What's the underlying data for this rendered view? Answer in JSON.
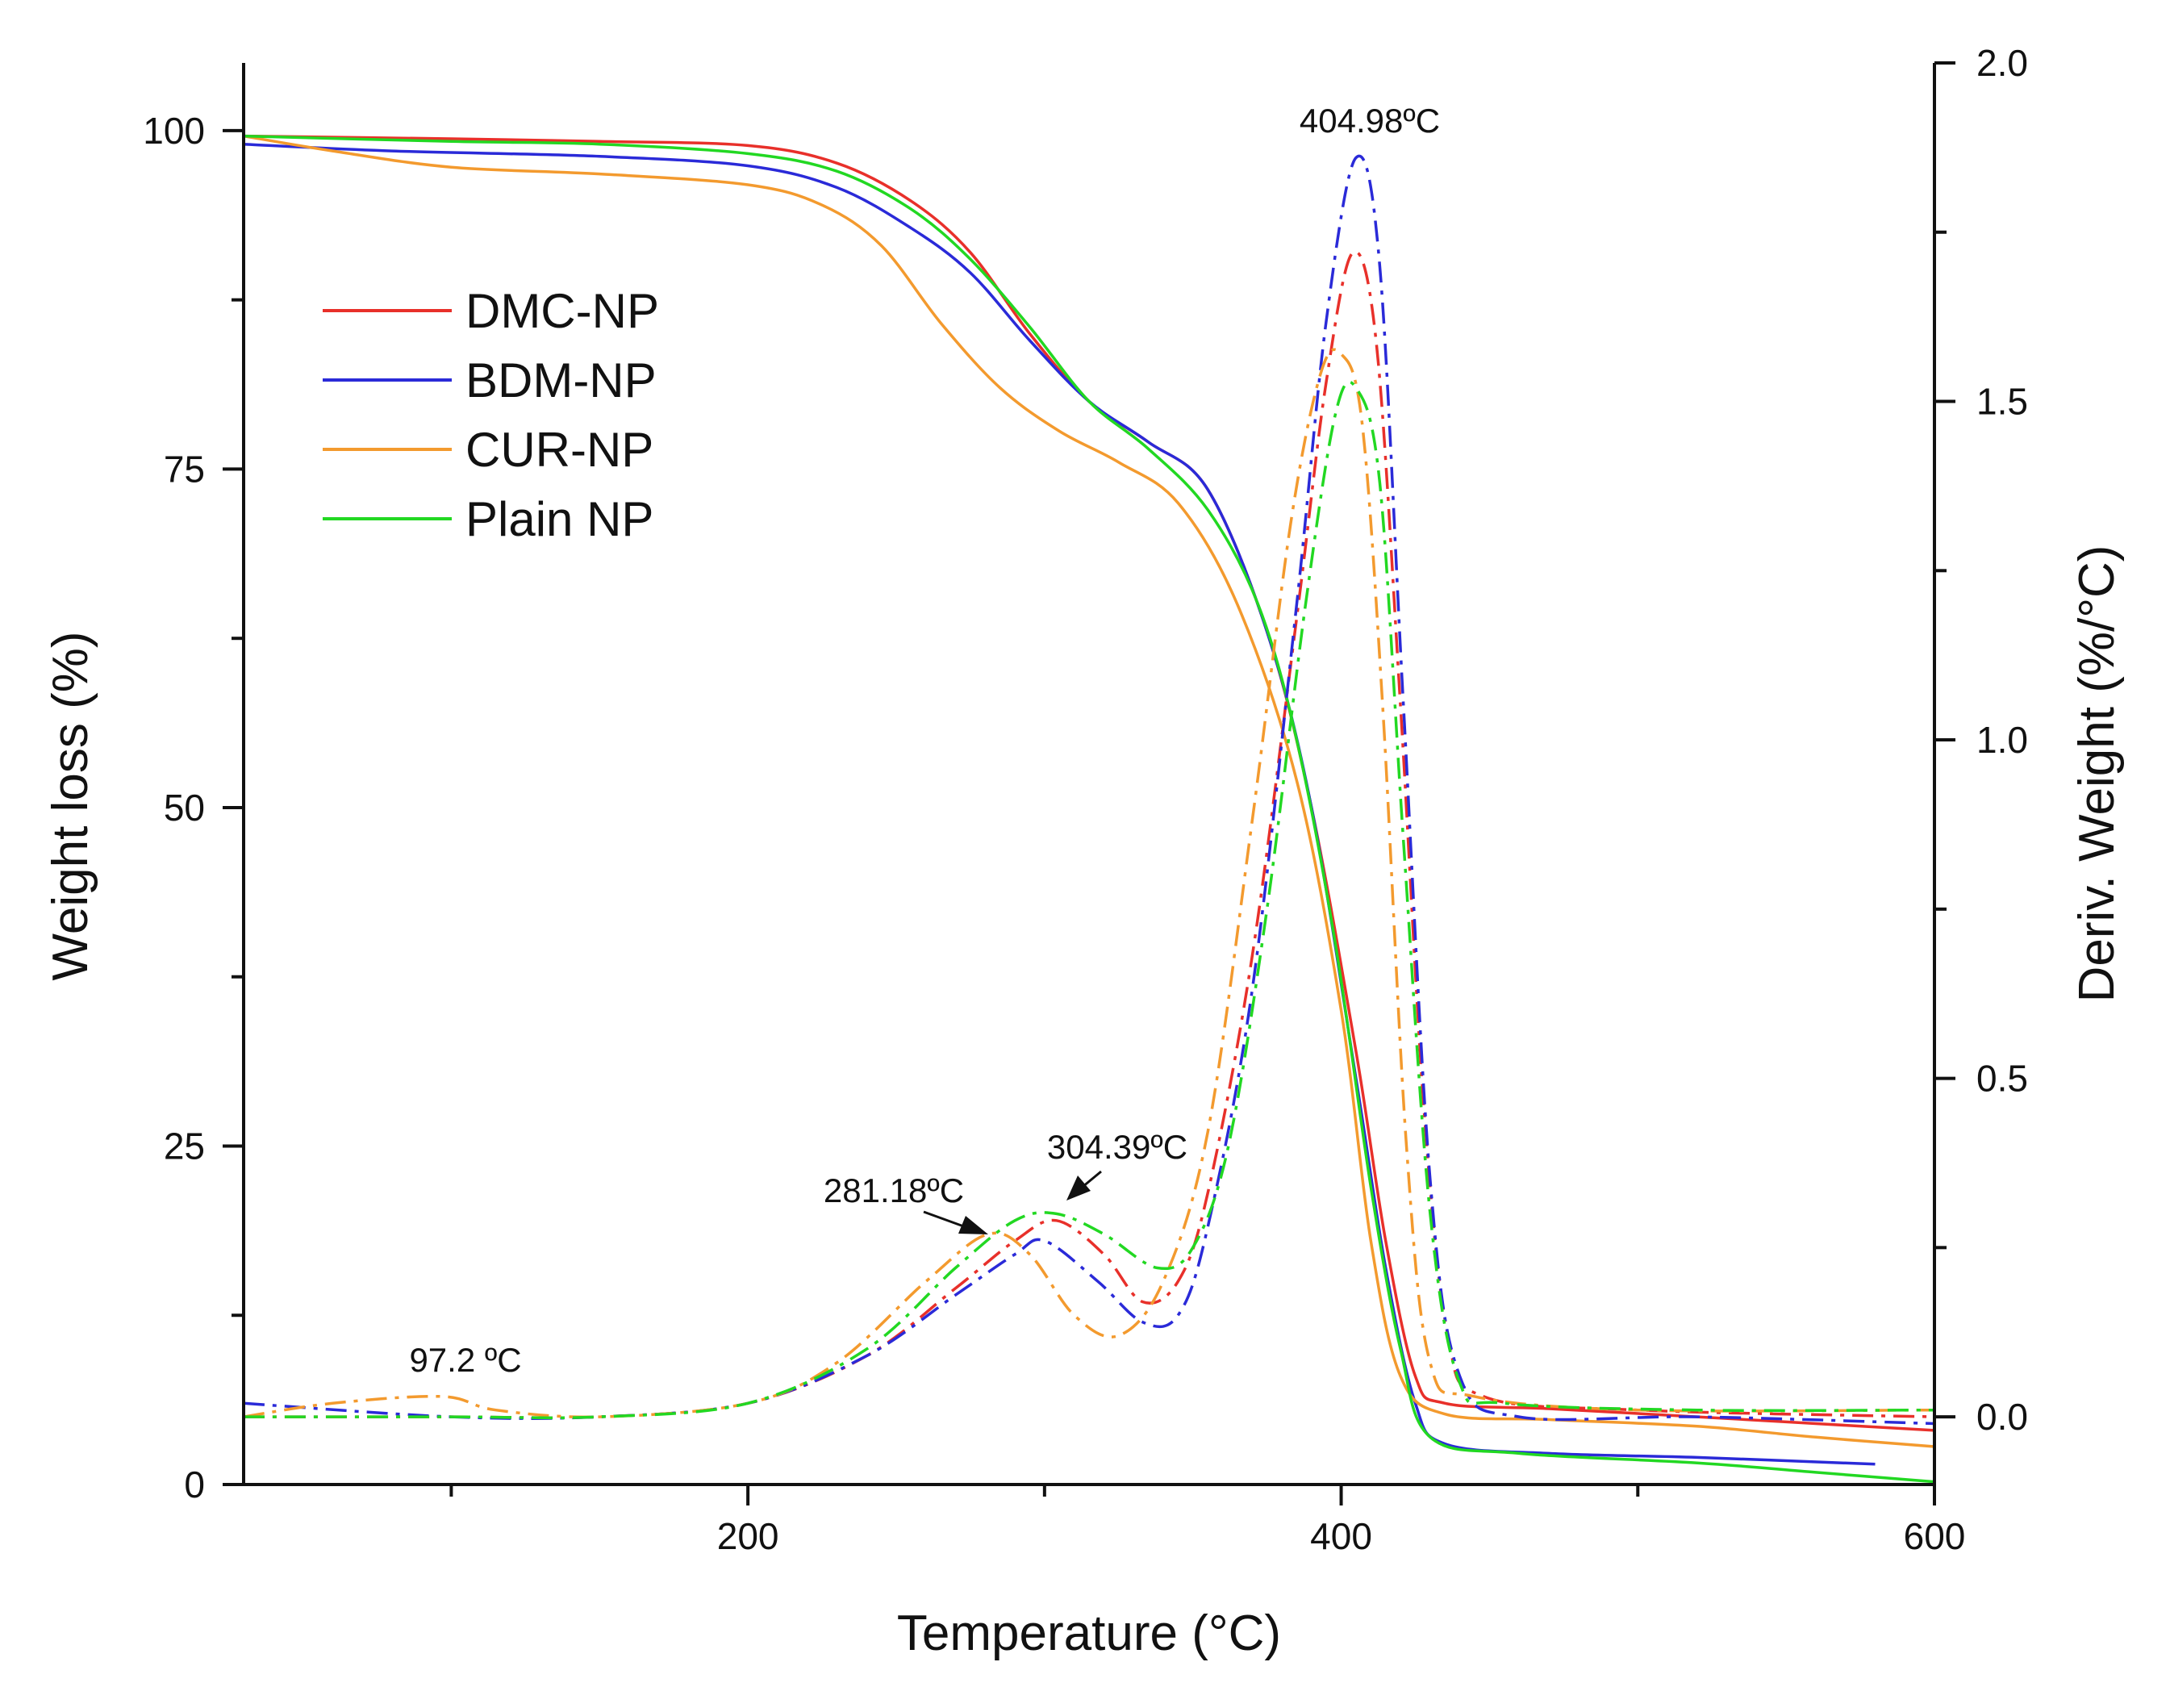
{
  "chart_data": {
    "type": "line",
    "xlabel": "Temperature (°C)",
    "ylabel": "Weight loss (%)",
    "y2label": "Deriv. Weight (%/°C)",
    "xlim": [
      30,
      600
    ],
    "ylim": [
      0,
      105
    ],
    "y2lim": [
      -0.1,
      2.0
    ],
    "x_ticks": [
      200,
      400,
      600
    ],
    "x_minor_ticks": [
      100,
      300,
      500
    ],
    "y_ticks": [
      0,
      25,
      50,
      75,
      100
    ],
    "y_minor_ticks": [
      12.5,
      37.5,
      62.5,
      87.5
    ],
    "y2_ticks": [
      0.0,
      0.5,
      1.0,
      1.5,
      2.0
    ],
    "y2_minor_ticks": [
      0.25,
      0.75,
      1.25,
      1.75
    ],
    "legend_position": "upper-left",
    "colors": {
      "DMC-NP": "#e8302a",
      "BDM-NP": "#2a2ad8",
      "CUR-NP": "#f39a2e",
      "Plain NP": "#22d822"
    },
    "series": [
      {
        "name": "DMC-NP",
        "axis": "left",
        "style": "solid",
        "points": [
          [
            30,
            99.6
          ],
          [
            100,
            99.4
          ],
          [
            150,
            99.2
          ],
          [
            200,
            98.9
          ],
          [
            230,
            97.6
          ],
          [
            255,
            94.8
          ],
          [
            275,
            91.0
          ],
          [
            295,
            85.0
          ],
          [
            315,
            80.0
          ],
          [
            335,
            77.0
          ],
          [
            355,
            73.5
          ],
          [
            375,
            63.0
          ],
          [
            390,
            50.0
          ],
          [
            405,
            32.0
          ],
          [
            415,
            18.0
          ],
          [
            425,
            8.0
          ],
          [
            435,
            6.0
          ],
          [
            470,
            5.6
          ],
          [
            520,
            5.0
          ],
          [
            560,
            4.5
          ],
          [
            600,
            4.0
          ]
        ]
      },
      {
        "name": "BDM-NP",
        "axis": "left",
        "style": "solid",
        "points": [
          [
            30,
            99.0
          ],
          [
            80,
            98.5
          ],
          [
            150,
            98.1
          ],
          [
            200,
            97.4
          ],
          [
            230,
            95.8
          ],
          [
            255,
            92.8
          ],
          [
            275,
            89.5
          ],
          [
            295,
            84.5
          ],
          [
            315,
            80.0
          ],
          [
            335,
            77.0
          ],
          [
            355,
            73.5
          ],
          [
            375,
            63.0
          ],
          [
            390,
            50.0
          ],
          [
            405,
            30.0
          ],
          [
            415,
            16.0
          ],
          [
            425,
            6.0
          ],
          [
            435,
            3.0
          ],
          [
            470,
            2.3
          ],
          [
            520,
            2.0
          ],
          [
            580,
            1.5
          ]
        ]
      },
      {
        "name": "CUR-NP",
        "axis": "left",
        "style": "solid",
        "points": [
          [
            30,
            99.6
          ],
          [
            60,
            98.5
          ],
          [
            100,
            97.3
          ],
          [
            150,
            96.8
          ],
          [
            200,
            96.0
          ],
          [
            225,
            94.5
          ],
          [
            245,
            91.5
          ],
          [
            265,
            85.8
          ],
          [
            285,
            81.0
          ],
          [
            305,
            77.8
          ],
          [
            325,
            75.5
          ],
          [
            345,
            72.5
          ],
          [
            365,
            65.0
          ],
          [
            385,
            52.0
          ],
          [
            400,
            35.0
          ],
          [
            410,
            18.0
          ],
          [
            420,
            8.0
          ],
          [
            435,
            5.2
          ],
          [
            470,
            4.8
          ],
          [
            520,
            4.3
          ],
          [
            560,
            3.5
          ],
          [
            600,
            2.8
          ]
        ]
      },
      {
        "name": "Plain NP",
        "axis": "left",
        "style": "solid",
        "points": [
          [
            30,
            99.6
          ],
          [
            100,
            99.2
          ],
          [
            150,
            99.0
          ],
          [
            200,
            98.3
          ],
          [
            230,
            97.0
          ],
          [
            255,
            94.2
          ],
          [
            275,
            90.5
          ],
          [
            295,
            85.5
          ],
          [
            315,
            80.0
          ],
          [
            335,
            76.5
          ],
          [
            355,
            72.0
          ],
          [
            372,
            65.0
          ],
          [
            385,
            55.0
          ],
          [
            398,
            40.0
          ],
          [
            410,
            22.0
          ],
          [
            420,
            10.0
          ],
          [
            430,
            3.5
          ],
          [
            460,
            2.3
          ],
          [
            520,
            1.6
          ],
          [
            560,
            0.9
          ],
          [
            600,
            0.2
          ]
        ]
      },
      {
        "name": "DMC-NP",
        "axis": "right",
        "style": "dash-dot",
        "points": [
          [
            30,
            0.0
          ],
          [
            100,
            0.0
          ],
          [
            150,
            0.0
          ],
          [
            200,
            0.02
          ],
          [
            240,
            0.09
          ],
          [
            270,
            0.19
          ],
          [
            290,
            0.26
          ],
          [
            304,
            0.29
          ],
          [
            320,
            0.24
          ],
          [
            333,
            0.17
          ],
          [
            345,
            0.2
          ],
          [
            355,
            0.33
          ],
          [
            370,
            0.68
          ],
          [
            385,
            1.18
          ],
          [
            395,
            1.53
          ],
          [
            404,
            1.72
          ],
          [
            412,
            1.58
          ],
          [
            420,
            1.05
          ],
          [
            428,
            0.45
          ],
          [
            436,
            0.12
          ],
          [
            448,
            0.03
          ],
          [
            500,
            0.01
          ],
          [
            600,
            0.0
          ]
        ]
      },
      {
        "name": "BDM-NP",
        "axis": "right",
        "style": "dash-dot",
        "points": [
          [
            30,
            0.02
          ],
          [
            100,
            0.0
          ],
          [
            150,
            0.0
          ],
          [
            200,
            0.02
          ],
          [
            240,
            0.09
          ],
          [
            270,
            0.18
          ],
          [
            290,
            0.24
          ],
          [
            300,
            0.26
          ],
          [
            318,
            0.2
          ],
          [
            333,
            0.14
          ],
          [
            345,
            0.15
          ],
          [
            355,
            0.28
          ],
          [
            370,
            0.63
          ],
          [
            385,
            1.2
          ],
          [
            395,
            1.62
          ],
          [
            405,
            1.86
          ],
          [
            413,
            1.7
          ],
          [
            421,
            1.05
          ],
          [
            430,
            0.35
          ],
          [
            440,
            0.06
          ],
          [
            460,
            0.0
          ],
          [
            520,
            0.0
          ],
          [
            600,
            -0.01
          ]
        ]
      },
      {
        "name": "CUR-NP",
        "axis": "right",
        "style": "dash-dot",
        "points": [
          [
            30,
            0.0
          ],
          [
            60,
            0.02
          ],
          [
            97,
            0.03
          ],
          [
            115,
            0.01
          ],
          [
            150,
            0.0
          ],
          [
            200,
            0.02
          ],
          [
            230,
            0.08
          ],
          [
            260,
            0.2
          ],
          [
            281,
            0.27
          ],
          [
            295,
            0.24
          ],
          [
            310,
            0.15
          ],
          [
            325,
            0.12
          ],
          [
            340,
            0.2
          ],
          [
            355,
            0.42
          ],
          [
            370,
            0.88
          ],
          [
            383,
            1.32
          ],
          [
            393,
            1.54
          ],
          [
            400,
            1.57
          ],
          [
            407,
            1.47
          ],
          [
            414,
            1.05
          ],
          [
            422,
            0.4
          ],
          [
            430,
            0.08
          ],
          [
            445,
            0.03
          ],
          [
            500,
            0.01
          ],
          [
            600,
            0.01
          ]
        ]
      },
      {
        "name": "Plain NP",
        "axis": "right",
        "style": "dash-dot",
        "points": [
          [
            30,
            0.0
          ],
          [
            100,
            0.0
          ],
          [
            150,
            0.0
          ],
          [
            200,
            0.02
          ],
          [
            240,
            0.1
          ],
          [
            270,
            0.22
          ],
          [
            290,
            0.29
          ],
          [
            304,
            0.3
          ],
          [
            320,
            0.27
          ],
          [
            338,
            0.22
          ],
          [
            350,
            0.25
          ],
          [
            362,
            0.4
          ],
          [
            375,
            0.75
          ],
          [
            388,
            1.2
          ],
          [
            398,
            1.48
          ],
          [
            405,
            1.52
          ],
          [
            413,
            1.38
          ],
          [
            421,
            0.85
          ],
          [
            430,
            0.3
          ],
          [
            440,
            0.05
          ],
          [
            455,
            0.02
          ],
          [
            520,
            0.01
          ],
          [
            600,
            0.01
          ]
        ]
      }
    ],
    "annotations": [
      {
        "text": "404.98ºC",
        "x": 404.98,
        "y2": 1.9
      },
      {
        "text": "304.39ºC",
        "x": 304.39,
        "y2": 0.3,
        "arrow": true
      },
      {
        "text": "281.18ºC",
        "x": 281.18,
        "y2": 0.27,
        "arrow": true
      },
      {
        "text": "97.2 ºC",
        "x": 97.2,
        "y2": 0.03
      }
    ]
  }
}
